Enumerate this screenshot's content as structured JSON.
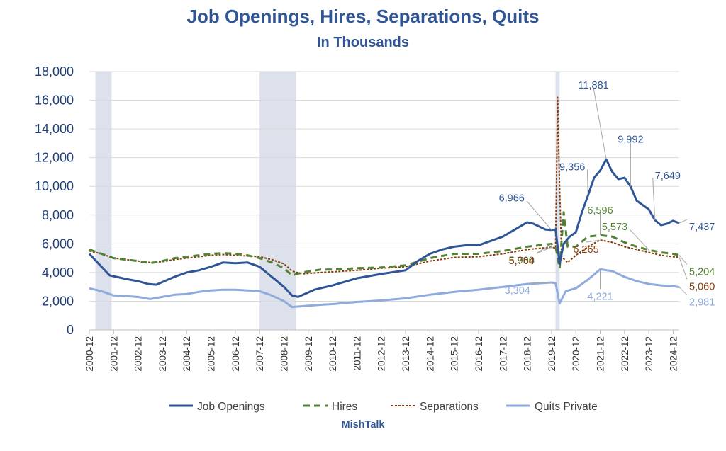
{
  "chart_data": {
    "type": "line",
    "title": "Job Openings, Hires, Separations, Quits",
    "subtitle": "In Thousands",
    "xlabel": "",
    "ylabel": "",
    "ylim": [
      0,
      18000
    ],
    "y_ticks": [
      "0",
      "2,000",
      "4,000",
      "6,000",
      "8,000",
      "10,000",
      "12,000",
      "14,000",
      "16,000",
      "18,000"
    ],
    "x_ticks": [
      "2000-12",
      "2001-12",
      "2002-12",
      "2003-12",
      "2004-12",
      "2005-12",
      "2006-12",
      "2007-12",
      "2008-12",
      "2009-12",
      "2010-12",
      "2011-12",
      "2012-12",
      "2013-12",
      "2014-12",
      "2015-12",
      "2016-12",
      "2017-12",
      "2018-12",
      "2019-12",
      "2020-12",
      "2021-12",
      "2022-12",
      "2023-12",
      "2024-12"
    ],
    "x_range": [
      "2000-12",
      "2025-03"
    ],
    "grid": "horizontal",
    "legend_position": "bottom",
    "recessions": [
      [
        "2001-03",
        "2001-11"
      ],
      [
        "2007-12",
        "2009-06"
      ],
      [
        "2020-02",
        "2020-04"
      ]
    ],
    "source": "MishTalk",
    "series": [
      {
        "name": "Job Openings",
        "color": "#2f5597",
        "style": "solid",
        "points": [
          [
            "2000-12",
            5300
          ],
          [
            "2001-04",
            4700
          ],
          [
            "2001-10",
            3800
          ],
          [
            "2002-06",
            3550
          ],
          [
            "2002-12",
            3400
          ],
          [
            "2003-05",
            3200
          ],
          [
            "2003-09",
            3150
          ],
          [
            "2004-06",
            3700
          ],
          [
            "2004-12",
            4000
          ],
          [
            "2005-06",
            4150
          ],
          [
            "2005-12",
            4400
          ],
          [
            "2006-06",
            4700
          ],
          [
            "2006-12",
            4650
          ],
          [
            "2007-06",
            4700
          ],
          [
            "2007-12",
            4400
          ],
          [
            "2008-06",
            3700
          ],
          [
            "2008-12",
            3000
          ],
          [
            "2009-04",
            2400
          ],
          [
            "2009-07",
            2300
          ],
          [
            "2010-03",
            2800
          ],
          [
            "2010-12",
            3100
          ],
          [
            "2011-12",
            3600
          ],
          [
            "2012-12",
            3900
          ],
          [
            "2013-12",
            4150
          ],
          [
            "2014-06",
            4800
          ],
          [
            "2014-12",
            5300
          ],
          [
            "2015-06",
            5600
          ],
          [
            "2015-12",
            5800
          ],
          [
            "2016-06",
            5900
          ],
          [
            "2016-12",
            5900
          ],
          [
            "2017-06",
            6200
          ],
          [
            "2017-12",
            6500
          ],
          [
            "2018-06",
            7000
          ],
          [
            "2018-12",
            7500
          ],
          [
            "2019-03",
            7400
          ],
          [
            "2019-09",
            7000
          ],
          [
            "2019-12",
            6966
          ],
          [
            "2020-02",
            7000
          ],
          [
            "2020-04",
            4600
          ],
          [
            "2020-06",
            6000
          ],
          [
            "2020-09",
            6500
          ],
          [
            "2020-12",
            6800
          ],
          [
            "2021-03",
            8200
          ],
          [
            "2021-06",
            9356
          ],
          [
            "2021-09",
            10600
          ],
          [
            "2021-12",
            11100
          ],
          [
            "2022-03",
            11881
          ],
          [
            "2022-06",
            11000
          ],
          [
            "2022-09",
            10500
          ],
          [
            "2022-12",
            10600
          ],
          [
            "2023-03",
            9992
          ],
          [
            "2023-06",
            9000
          ],
          [
            "2023-09",
            8700
          ],
          [
            "2023-12",
            8400
          ],
          [
            "2024-03",
            7649
          ],
          [
            "2024-06",
            7300
          ],
          [
            "2024-09",
            7400
          ],
          [
            "2024-12",
            7600
          ],
          [
            "2025-03",
            7437
          ]
        ]
      },
      {
        "name": "Hires",
        "color": "#538135",
        "style": "dashed",
        "points": [
          [
            "2000-12",
            5600
          ],
          [
            "2001-06",
            5300
          ],
          [
            "2001-12",
            5000
          ],
          [
            "2002-06",
            4900
          ],
          [
            "2002-12",
            4800
          ],
          [
            "2003-06",
            4650
          ],
          [
            "2003-12",
            4800
          ],
          [
            "2004-06",
            5000
          ],
          [
            "2004-12",
            5100
          ],
          [
            "2005-06",
            5200
          ],
          [
            "2005-12",
            5300
          ],
          [
            "2006-06",
            5350
          ],
          [
            "2006-12",
            5300
          ],
          [
            "2007-06",
            5200
          ],
          [
            "2007-12",
            5000
          ],
          [
            "2008-06",
            4700
          ],
          [
            "2008-12",
            4300
          ],
          [
            "2009-04",
            3800
          ],
          [
            "2009-09",
            4000
          ],
          [
            "2010-06",
            4200
          ],
          [
            "2010-12",
            4200
          ],
          [
            "2011-12",
            4300
          ],
          [
            "2012-12",
            4350
          ],
          [
            "2013-12",
            4500
          ],
          [
            "2014-12",
            5000
          ],
          [
            "2015-12",
            5300
          ],
          [
            "2016-12",
            5300
          ],
          [
            "2017-12",
            5500
          ],
          [
            "2018-12",
            5800
          ],
          [
            "2019-12",
            5990
          ],
          [
            "2020-02",
            5800
          ],
          [
            "2020-04",
            4300
          ],
          [
            "2020-06",
            8200
          ],
          [
            "2020-08",
            5800
          ],
          [
            "2020-12",
            5800
          ],
          [
            "2021-06",
            6500
          ],
          [
            "2021-12",
            6596
          ],
          [
            "2022-06",
            6500
          ],
          [
            "2022-12",
            6100
          ],
          [
            "2023-06",
            5800
          ],
          [
            "2023-12",
            5573
          ],
          [
            "2024-06",
            5400
          ],
          [
            "2024-12",
            5300
          ],
          [
            "2025-03",
            5204
          ]
        ]
      },
      {
        "name": "Separations",
        "color": "#843c0c",
        "style": "dotted",
        "points": [
          [
            "2000-12",
            5500
          ],
          [
            "2001-06",
            5300
          ],
          [
            "2001-12",
            5000
          ],
          [
            "2002-06",
            4900
          ],
          [
            "2002-12",
            4800
          ],
          [
            "2003-06",
            4700
          ],
          [
            "2003-12",
            4750
          ],
          [
            "2004-06",
            4900
          ],
          [
            "2004-12",
            5000
          ],
          [
            "2005-06",
            5100
          ],
          [
            "2005-12",
            5200
          ],
          [
            "2006-06",
            5250
          ],
          [
            "2006-12",
            5200
          ],
          [
            "2007-06",
            5150
          ],
          [
            "2007-12",
            5100
          ],
          [
            "2008-06",
            4900
          ],
          [
            "2008-12",
            4600
          ],
          [
            "2009-04",
            4100
          ],
          [
            "2009-09",
            3900
          ],
          [
            "2010-06",
            4000
          ],
          [
            "2010-12",
            4050
          ],
          [
            "2011-12",
            4150
          ],
          [
            "2012-12",
            4300
          ],
          [
            "2013-12",
            4400
          ],
          [
            "2014-12",
            4800
          ],
          [
            "2015-12",
            5050
          ],
          [
            "2016-12",
            5100
          ],
          [
            "2017-12",
            5300
          ],
          [
            "2018-12",
            5600
          ],
          [
            "2019-12",
            5764
          ],
          [
            "2020-02",
            5700
          ],
          [
            "2020-03",
            16200
          ],
          [
            "2020-04",
            9900
          ],
          [
            "2020-05",
            5100
          ],
          [
            "2020-08",
            4700
          ],
          [
            "2020-12",
            5200
          ],
          [
            "2021-06",
            5800
          ],
          [
            "2021-12",
            6265
          ],
          [
            "2022-06",
            6100
          ],
          [
            "2022-12",
            5800
          ],
          [
            "2023-06",
            5600
          ],
          [
            "2023-12",
            5400
          ],
          [
            "2024-06",
            5200
          ],
          [
            "2024-12",
            5100
          ],
          [
            "2025-03",
            5060
          ]
        ]
      },
      {
        "name": "Quits Private",
        "color": "#8faadc",
        "style": "solid",
        "points": [
          [
            "2000-12",
            2900
          ],
          [
            "2001-06",
            2700
          ],
          [
            "2001-12",
            2400
          ],
          [
            "2002-06",
            2350
          ],
          [
            "2002-12",
            2300
          ],
          [
            "2003-06",
            2150
          ],
          [
            "2003-12",
            2300
          ],
          [
            "2004-06",
            2450
          ],
          [
            "2004-12",
            2500
          ],
          [
            "2005-06",
            2650
          ],
          [
            "2005-12",
            2750
          ],
          [
            "2006-06",
            2800
          ],
          [
            "2006-12",
            2800
          ],
          [
            "2007-06",
            2750
          ],
          [
            "2007-12",
            2700
          ],
          [
            "2008-06",
            2400
          ],
          [
            "2008-12",
            2000
          ],
          [
            "2009-04",
            1600
          ],
          [
            "2009-09",
            1650
          ],
          [
            "2010-06",
            1750
          ],
          [
            "2010-12",
            1800
          ],
          [
            "2011-12",
            1950
          ],
          [
            "2012-12",
            2050
          ],
          [
            "2013-12",
            2200
          ],
          [
            "2014-12",
            2450
          ],
          [
            "2015-12",
            2650
          ],
          [
            "2016-12",
            2800
          ],
          [
            "2017-12",
            3000
          ],
          [
            "2018-12",
            3200
          ],
          [
            "2019-12",
            3304
          ],
          [
            "2020-02",
            3250
          ],
          [
            "2020-04",
            1850
          ],
          [
            "2020-07",
            2700
          ],
          [
            "2020-12",
            2900
          ],
          [
            "2021-06",
            3500
          ],
          [
            "2021-12",
            4221
          ],
          [
            "2022-06",
            4100
          ],
          [
            "2022-12",
            3700
          ],
          [
            "2023-06",
            3400
          ],
          [
            "2023-12",
            3200
          ],
          [
            "2024-06",
            3100
          ],
          [
            "2024-12",
            3050
          ],
          [
            "2025-03",
            2981
          ]
        ]
      }
    ],
    "annotations": [
      {
        "text": "6,966",
        "series": "Job Openings",
        "date": "2019-12",
        "value": 6966
      },
      {
        "text": "9,356",
        "series": "Job Openings",
        "date": "2021-06",
        "value": 9356
      },
      {
        "text": "11,881",
        "series": "Job Openings",
        "date": "2022-03",
        "value": 11881
      },
      {
        "text": "9,992",
        "series": "Job Openings",
        "date": "2023-03",
        "value": 9992
      },
      {
        "text": "7,649",
        "series": "Job Openings",
        "date": "2024-03",
        "value": 7649
      },
      {
        "text": "7,437",
        "series": "Job Openings",
        "date": "2025-03",
        "value": 7437
      },
      {
        "text": "5,990",
        "series": "Hires",
        "date": "2019-12",
        "value": 5990
      },
      {
        "text": "6,596",
        "series": "Hires",
        "date": "2021-12",
        "value": 6596
      },
      {
        "text": "5,573",
        "series": "Hires",
        "date": "2023-12",
        "value": 5573
      },
      {
        "text": "5,204",
        "series": "Hires",
        "date": "2025-03",
        "value": 5204
      },
      {
        "text": "5,764",
        "series": "Separations",
        "date": "2019-12",
        "value": 5764
      },
      {
        "text": "6,265",
        "series": "Separations",
        "date": "2021-12",
        "value": 6265
      },
      {
        "text": "5,060",
        "series": "Separations",
        "date": "2025-03",
        "value": 5060
      },
      {
        "text": "3,304",
        "series": "Quits Private",
        "date": "2019-12",
        "value": 3304
      },
      {
        "text": "4,221",
        "series": "Quits Private",
        "date": "2021-12",
        "value": 4221
      },
      {
        "text": "2,981",
        "series": "Quits Private",
        "date": "2025-03",
        "value": 2981
      }
    ]
  }
}
